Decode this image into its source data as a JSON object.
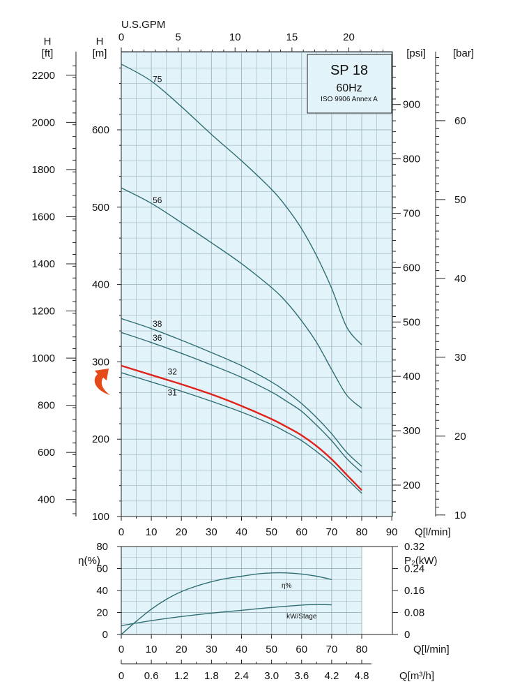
{
  "chart_data": [
    {
      "type": "line",
      "title": "SP 18",
      "subtitle": "60Hz",
      "note": "ISO 9906 Annex A",
      "xlabel": "Q[l/min]",
      "ylabel": "H [m]",
      "xlim": [
        0,
        90
      ],
      "ylim": [
        100,
        700
      ],
      "grid": true,
      "x_ticks": [
        "0",
        "10",
        "20",
        "30",
        "40",
        "50",
        "60",
        "70",
        "80",
        "90"
      ],
      "y_ticks": [
        "100",
        "200",
        "300",
        "400",
        "500",
        "600"
      ],
      "top_axis": {
        "label": "U.S.GPM",
        "ticks": [
          "0",
          "5",
          "10",
          "15",
          "20"
        ]
      },
      "left_outer_axis": {
        "label_top": "H",
        "label": "[ft]",
        "ticks": [
          "400",
          "600",
          "800",
          "1000",
          "1200",
          "1400",
          "1600",
          "1800",
          "2000",
          "2200"
        ]
      },
      "left_inner_axis": {
        "label_top": "H",
        "label": "[m]"
      },
      "right_axis_1": {
        "label": "[psi]",
        "ticks": [
          "200",
          "300",
          "400",
          "500",
          "600",
          "700",
          "800",
          "900"
        ]
      },
      "right_axis_2": {
        "label": "[bar]",
        "ticks": [
          "10",
          "20",
          "30",
          "40",
          "50",
          "60"
        ]
      },
      "series": [
        {
          "name": "75",
          "color": "#2f6e73",
          "x": [
            0,
            10,
            20,
            30,
            40,
            50,
            55,
            60,
            65,
            70,
            75,
            80
          ],
          "y": [
            685,
            663,
            630,
            594,
            560,
            523,
            500,
            472,
            437,
            395,
            345,
            322
          ]
        },
        {
          "name": "56",
          "color": "#2f6e73",
          "x": [
            0,
            10,
            20,
            30,
            40,
            50,
            55,
            60,
            65,
            70,
            75,
            80
          ],
          "y": [
            525,
            505,
            480,
            454,
            427,
            396,
            377,
            353,
            325,
            290,
            257,
            240
          ]
        },
        {
          "name": "38",
          "color": "#2f6e73",
          "x": [
            0,
            10,
            20,
            30,
            40,
            50,
            55,
            60,
            65,
            70,
            75,
            80
          ],
          "y": [
            356,
            343,
            328,
            312,
            295,
            274,
            261,
            246,
            228,
            207,
            183,
            165
          ]
        },
        {
          "name": "36",
          "color": "#2f6e73",
          "x": [
            0,
            10,
            20,
            30,
            40,
            50,
            55,
            60,
            65,
            70,
            75,
            80
          ],
          "y": [
            338,
            325,
            311,
            296,
            280,
            261,
            249,
            236,
            218,
            198,
            175,
            157
          ]
        },
        {
          "name": "32",
          "color": "#e0221b",
          "x": [
            0,
            10,
            20,
            30,
            40,
            50,
            55,
            60,
            65,
            70,
            75,
            80
          ],
          "y": [
            295,
            283,
            271,
            258,
            243,
            226,
            216,
            205,
            191,
            174,
            154,
            134
          ]
        },
        {
          "name": "31",
          "color": "#2f6e73",
          "x": [
            0,
            10,
            20,
            30,
            40,
            50,
            55,
            60,
            65,
            70,
            75,
            80
          ],
          "y": [
            286,
            274,
            262,
            249,
            235,
            219,
            209,
            198,
            184,
            168,
            149,
            130
          ]
        }
      ],
      "highlighted_series": "32",
      "marker": {
        "y": 265,
        "color": "#e54a1a"
      }
    },
    {
      "type": "line",
      "xlabel": "Q[l/min]",
      "ylabel": "η(%)",
      "xlim": [
        0,
        80
      ],
      "ylim": [
        0,
        80
      ],
      "grid": true,
      "x_ticks": [
        "0",
        "10",
        "20",
        "30",
        "40",
        "50",
        "60",
        "70",
        "80"
      ],
      "y_ticks": [
        "0",
        "20",
        "40",
        "60",
        "80"
      ],
      "right_axis": {
        "label": "P₂(kW)",
        "ticks": [
          "0",
          "0.08",
          "0.16",
          "0.24",
          "0.32"
        ]
      },
      "bottom_axis_2": {
        "label": "Q[m³/h]",
        "ticks": [
          "0",
          "0.6",
          "1.2",
          "1.8",
          "2.4",
          "3.0",
          "3.6",
          "4.2",
          "4.8"
        ]
      },
      "series": [
        {
          "name": "η%",
          "color": "#2f6e73",
          "x": [
            0,
            5,
            10,
            15,
            20,
            25,
            30,
            35,
            40,
            45,
            50,
            55,
            60,
            65,
            70
          ],
          "y": [
            0,
            12,
            23,
            32,
            39,
            44,
            48,
            51,
            53,
            55,
            56,
            56,
            55,
            53,
            50
          ]
        },
        {
          "name": "kW/Stage",
          "color": "#2f6e73",
          "x": [
            0,
            10,
            20,
            30,
            40,
            50,
            60,
            65,
            70
          ],
          "y": [
            8,
            12.6,
            16.3,
            19.4,
            22,
            24.6,
            26.7,
            27.3,
            27
          ]
        }
      ]
    }
  ]
}
